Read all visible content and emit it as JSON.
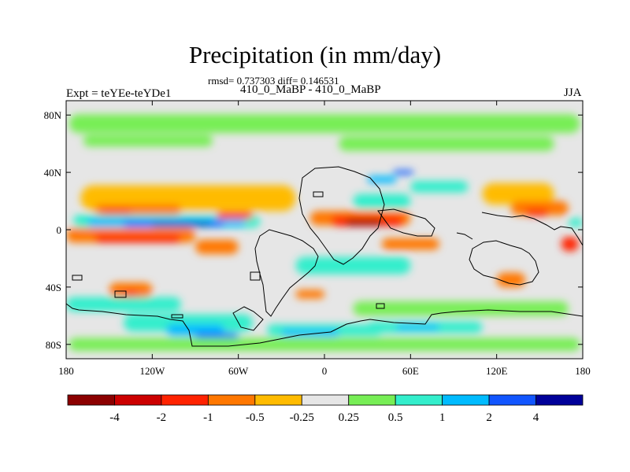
{
  "title": "Precipitation (in mm/day)",
  "stats": "rmsd= 0.737303 diff= 0.146531",
  "subtitle": "410_0_MaBP - 410_0_MaBP",
  "left_label": "Expt = teYEe-teYDe1",
  "right_label": "JJA",
  "map": {
    "lon_range": [
      -180,
      180
    ],
    "lat_range": [
      -90,
      90
    ],
    "x_ticks": [
      {
        "lon": -180,
        "label": "180"
      },
      {
        "lon": -120,
        "label": "120W"
      },
      {
        "lon": -60,
        "label": "60W"
      },
      {
        "lon": 0,
        "label": "0"
      },
      {
        "lon": 60,
        "label": "60E"
      },
      {
        "lon": 120,
        "label": "120E"
      },
      {
        "lon": 180,
        "label": "180"
      }
    ],
    "y_ticks": [
      {
        "lat": 80,
        "label": "80N"
      },
      {
        "lat": 40,
        "label": "40N"
      },
      {
        "lat": 0,
        "label": "0"
      },
      {
        "lat": -40,
        "label": "40S"
      },
      {
        "lat": -80,
        "label": "80S"
      }
    ],
    "background_color": "#e6e6e6"
  },
  "colorbar": {
    "colors": [
      "#8b0000",
      "#cc0000",
      "#ff2200",
      "#ff7700",
      "#ffbb00",
      "#e6e6e6",
      "#77ee55",
      "#33eecc",
      "#00bbff",
      "#1155ff",
      "#000099"
    ],
    "labels": [
      "-4",
      "-2",
      "-1",
      "-0.5",
      "-0.25",
      "0.25",
      "0.5",
      "1",
      "2",
      "4"
    ]
  },
  "chart_data": {
    "type": "heatmap",
    "title": "Precipitation (in mm/day)",
    "subtitle": "410_0_MaBP - 410_0_MaBP",
    "units": "mm/day",
    "xlim": [
      -180,
      180
    ],
    "ylim": [
      -90,
      90
    ],
    "levels": [
      -4,
      -2,
      -1,
      -0.5,
      -0.25,
      0.25,
      0.5,
      1,
      2,
      4
    ],
    "regions": [
      {
        "lon": -178,
        "lat": 74,
        "w": 356,
        "h": 13,
        "value": 0.3
      },
      {
        "lon": -168,
        "lat": 62,
        "w": 90,
        "h": 8,
        "value": 0.3
      },
      {
        "lon": 10,
        "lat": 60,
        "w": 150,
        "h": 10,
        "value": 0.3
      },
      {
        "lon": -170,
        "lat": 22,
        "w": 150,
        "h": 18,
        "value": -0.3
      },
      {
        "lon": -160,
        "lat": 14,
        "w": 60,
        "h": 7,
        "value": -0.6
      },
      {
        "lon": -155,
        "lat": 12,
        "w": 20,
        "h": 4,
        "value": -1.5
      },
      {
        "lon": -175,
        "lat": 6,
        "w": 130,
        "h": 9,
        "value": 0.6
      },
      {
        "lon": -165,
        "lat": 5,
        "w": 110,
        "h": 6,
        "value": 1.2
      },
      {
        "lon": -140,
        "lat": 4,
        "w": 70,
        "h": 4,
        "value": 2.2
      },
      {
        "lon": -120,
        "lat": 3.5,
        "w": 40,
        "h": 2.5,
        "value": 4.5
      },
      {
        "lon": -75,
        "lat": 10,
        "w": 25,
        "h": 5,
        "value": -1.5
      },
      {
        "lon": -10,
        "lat": 8,
        "w": 70,
        "h": 10,
        "value": -0.7
      },
      {
        "lon": 5,
        "lat": 6,
        "w": 50,
        "h": 7,
        "value": -1.5
      },
      {
        "lon": 15,
        "lat": 5,
        "w": 25,
        "h": 4,
        "value": -4.5
      },
      {
        "lon": -180,
        "lat": -4,
        "w": 90,
        "h": 10,
        "value": -0.6
      },
      {
        "lon": -160,
        "lat": -6,
        "w": 60,
        "h": 6,
        "value": -1.5
      },
      {
        "lon": -90,
        "lat": -12,
        "w": 30,
        "h": 10,
        "value": -0.6
      },
      {
        "lon": 40,
        "lat": -10,
        "w": 40,
        "h": 8,
        "value": -0.6
      },
      {
        "lon": 20,
        "lat": 20,
        "w": 40,
        "h": 10,
        "value": 0.6
      },
      {
        "lon": 30,
        "lat": 35,
        "w": 20,
        "h": 5,
        "value": 1.2
      },
      {
        "lon": 48,
        "lat": 40,
        "w": 14,
        "h": 3,
        "value": 2.2
      },
      {
        "lon": 60,
        "lat": 30,
        "w": 40,
        "h": 8,
        "value": 0.6
      },
      {
        "lon": 110,
        "lat": 25,
        "w": 50,
        "h": 15,
        "value": -0.3
      },
      {
        "lon": 130,
        "lat": 15,
        "w": 40,
        "h": 10,
        "value": -0.6
      },
      {
        "lon": 140,
        "lat": 12,
        "w": 16,
        "h": 5,
        "value": -1.5
      },
      {
        "lon": 170,
        "lat": 5,
        "w": 10,
        "h": 6,
        "value": 0.6
      },
      {
        "lon": 165,
        "lat": -10,
        "w": 12,
        "h": 10,
        "value": -1.5
      },
      {
        "lon": -20,
        "lat": -25,
        "w": 80,
        "h": 12,
        "value": 0.6
      },
      {
        "lon": -150,
        "lat": -42,
        "w": 30,
        "h": 10,
        "value": -0.6
      },
      {
        "lon": -140,
        "lat": -45,
        "w": 10,
        "h": 4,
        "value": -1.5
      },
      {
        "lon": 120,
        "lat": -35,
        "w": 20,
        "h": 10,
        "value": -0.6
      },
      {
        "lon": -20,
        "lat": -45,
        "w": 20,
        "h": 6,
        "value": -0.6
      },
      {
        "lon": -180,
        "lat": -52,
        "w": 80,
        "h": 10,
        "value": 0.6
      },
      {
        "lon": 20,
        "lat": -55,
        "w": 150,
        "h": 10,
        "value": 0.3
      },
      {
        "lon": -140,
        "lat": -65,
        "w": 90,
        "h": 12,
        "value": 0.6
      },
      {
        "lon": -110,
        "lat": -70,
        "w": 40,
        "h": 8,
        "value": 1.2
      },
      {
        "lon": -90,
        "lat": -75,
        "w": 30,
        "h": 6,
        "value": 2.2
      },
      {
        "lon": -40,
        "lat": -70,
        "w": 80,
        "h": 8,
        "value": 0.6
      },
      {
        "lon": -30,
        "lat": -72,
        "w": 40,
        "h": 5,
        "value": 1.2
      },
      {
        "lon": 30,
        "lat": -68,
        "w": 80,
        "h": 8,
        "value": 0.6
      },
      {
        "lon": 50,
        "lat": -68,
        "w": 30,
        "h": 4,
        "value": 1.2
      },
      {
        "lon": -178,
        "lat": -80,
        "w": 356,
        "h": 9,
        "value": 0.3
      }
    ]
  }
}
